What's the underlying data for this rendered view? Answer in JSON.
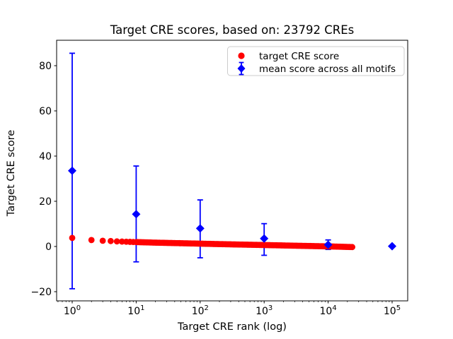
{
  "chart_data": {
    "type": "scatter",
    "title": "Target CRE scores, based on: 23792 CREs",
    "xlabel": "Target CRE rank (log)",
    "ylabel": "Target CRE score",
    "x_scale": "log",
    "grid": false,
    "legend_position": "upper right",
    "xlim_log10": [
      -0.2435,
      5.2435
    ],
    "ylim": [
      -24.1,
      91.3
    ],
    "x_major_tick_exponents": [
      0,
      1,
      2,
      3,
      4,
      5
    ],
    "y_ticks": [
      -20,
      0,
      20,
      40,
      60,
      80
    ],
    "y_tick_labels": [
      "−20",
      "0",
      "20",
      "40",
      "60",
      "80"
    ],
    "series": [
      {
        "name": "target CRE score",
        "type": "scatter",
        "marker": "circle",
        "color": "#ff0000",
        "count": 23792,
        "interpolation": "log-linear",
        "anchor_points": [
          [
            1,
            3.8
          ],
          [
            2,
            2.85
          ],
          [
            3,
            2.55
          ],
          [
            4,
            2.4
          ],
          [
            5,
            2.25
          ],
          [
            7,
            2.1
          ],
          [
            10,
            1.95
          ],
          [
            20,
            1.7
          ],
          [
            50,
            1.45
          ],
          [
            100,
            1.25
          ],
          [
            300,
            0.95
          ],
          [
            1000,
            0.65
          ],
          [
            3000,
            0.35
          ],
          [
            10000,
            0.05
          ],
          [
            23792,
            -0.25
          ]
        ]
      },
      {
        "name": "mean score across all motifs",
        "type": "errorbar",
        "marker": "diamond",
        "color": "#0000ff",
        "points": [
          {
            "rank": 1,
            "mean": 33.5,
            "lo": -18.7,
            "hi": 85.5
          },
          {
            "rank": 10,
            "mean": 14.3,
            "lo": -6.8,
            "hi": 35.6
          },
          {
            "rank": 100,
            "mean": 8.0,
            "lo": -5.0,
            "hi": 20.6
          },
          {
            "rank": 1000,
            "mean": 3.5,
            "lo": -3.9,
            "hi": 10.1
          },
          {
            "rank": 10000,
            "mean": 0.8,
            "lo": -1.3,
            "hi": 2.9
          },
          {
            "rank": 100000,
            "mean": 0.1,
            "lo": 0.1,
            "hi": 0.1
          }
        ]
      }
    ]
  },
  "legend": {
    "items": [
      {
        "label": "target CRE score",
        "marker": "circle-icon",
        "color": "#ff0000"
      },
      {
        "label": "mean score across all motifs",
        "marker": "diamond-errorbar-icon",
        "color": "#0000ff"
      }
    ]
  }
}
